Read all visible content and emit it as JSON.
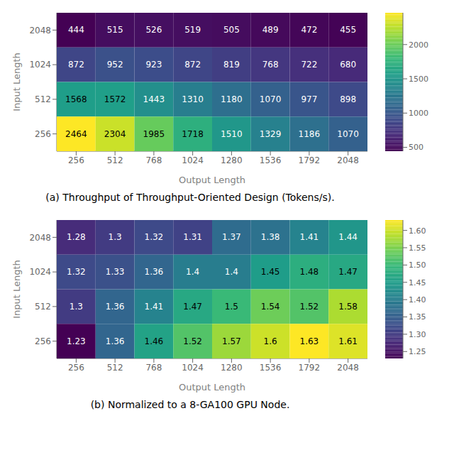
{
  "chart_data": [
    {
      "type": "heatmap",
      "x_label": "Output Length",
      "y_label": "Input Length",
      "caption": "(a) Throughput of Throughput-Oriented Design (Tokens/s).",
      "x_categories": [
        "256",
        "512",
        "768",
        "1024",
        "1280",
        "1536",
        "1792",
        "2048"
      ],
      "y_categories": [
        "2048",
        "1024",
        "512",
        "256"
      ],
      "values": [
        [
          444,
          515,
          526,
          519,
          505,
          489,
          472,
          455
        ],
        [
          872,
          952,
          923,
          872,
          819,
          768,
          722,
          680
        ],
        [
          1568,
          1572,
          1443,
          1310,
          1180,
          1070,
          977,
          898
        ],
        [
          2464,
          2304,
          1985,
          1718,
          1510,
          1329,
          1186,
          1070
        ]
      ],
      "color": "viridis",
      "colorbar_lim": [
        444,
        2464
      ],
      "colorbar_ticks": [
        500,
        1000,
        1500,
        2000
      ],
      "data_labels": true
    },
    {
      "type": "heatmap",
      "x_label": "Output Length",
      "y_label": "Input Length",
      "caption": "(b) Normalized to a 8-GA100 GPU Node.",
      "x_categories": [
        "256",
        "512",
        "768",
        "1024",
        "1280",
        "1536",
        "1792",
        "2048"
      ],
      "y_categories": [
        "2048",
        "1024",
        "512",
        "256"
      ],
      "values": [
        [
          1.28,
          1.3,
          1.32,
          1.31,
          1.37,
          1.38,
          1.41,
          1.44
        ],
        [
          1.32,
          1.33,
          1.36,
          1.4,
          1.4,
          1.45,
          1.48,
          1.47
        ],
        [
          1.3,
          1.36,
          1.41,
          1.47,
          1.5,
          1.54,
          1.52,
          1.58
        ],
        [
          1.23,
          1.36,
          1.46,
          1.52,
          1.57,
          1.6,
          1.63,
          1.61
        ]
      ],
      "color": "viridis",
      "colorbar_lim": [
        1.23,
        1.63
      ],
      "colorbar_ticks": [
        1.25,
        {
          "value": 1.3,
          "label": "1.30"
        },
        1.35,
        {
          "value": 1.4,
          "label": "1.40"
        },
        1.45,
        {
          "value": 1.5,
          "label": "1.50"
        },
        1.55,
        {
          "value": 1.6,
          "label": "1.60"
        }
      ],
      "data_labels": true
    }
  ]
}
